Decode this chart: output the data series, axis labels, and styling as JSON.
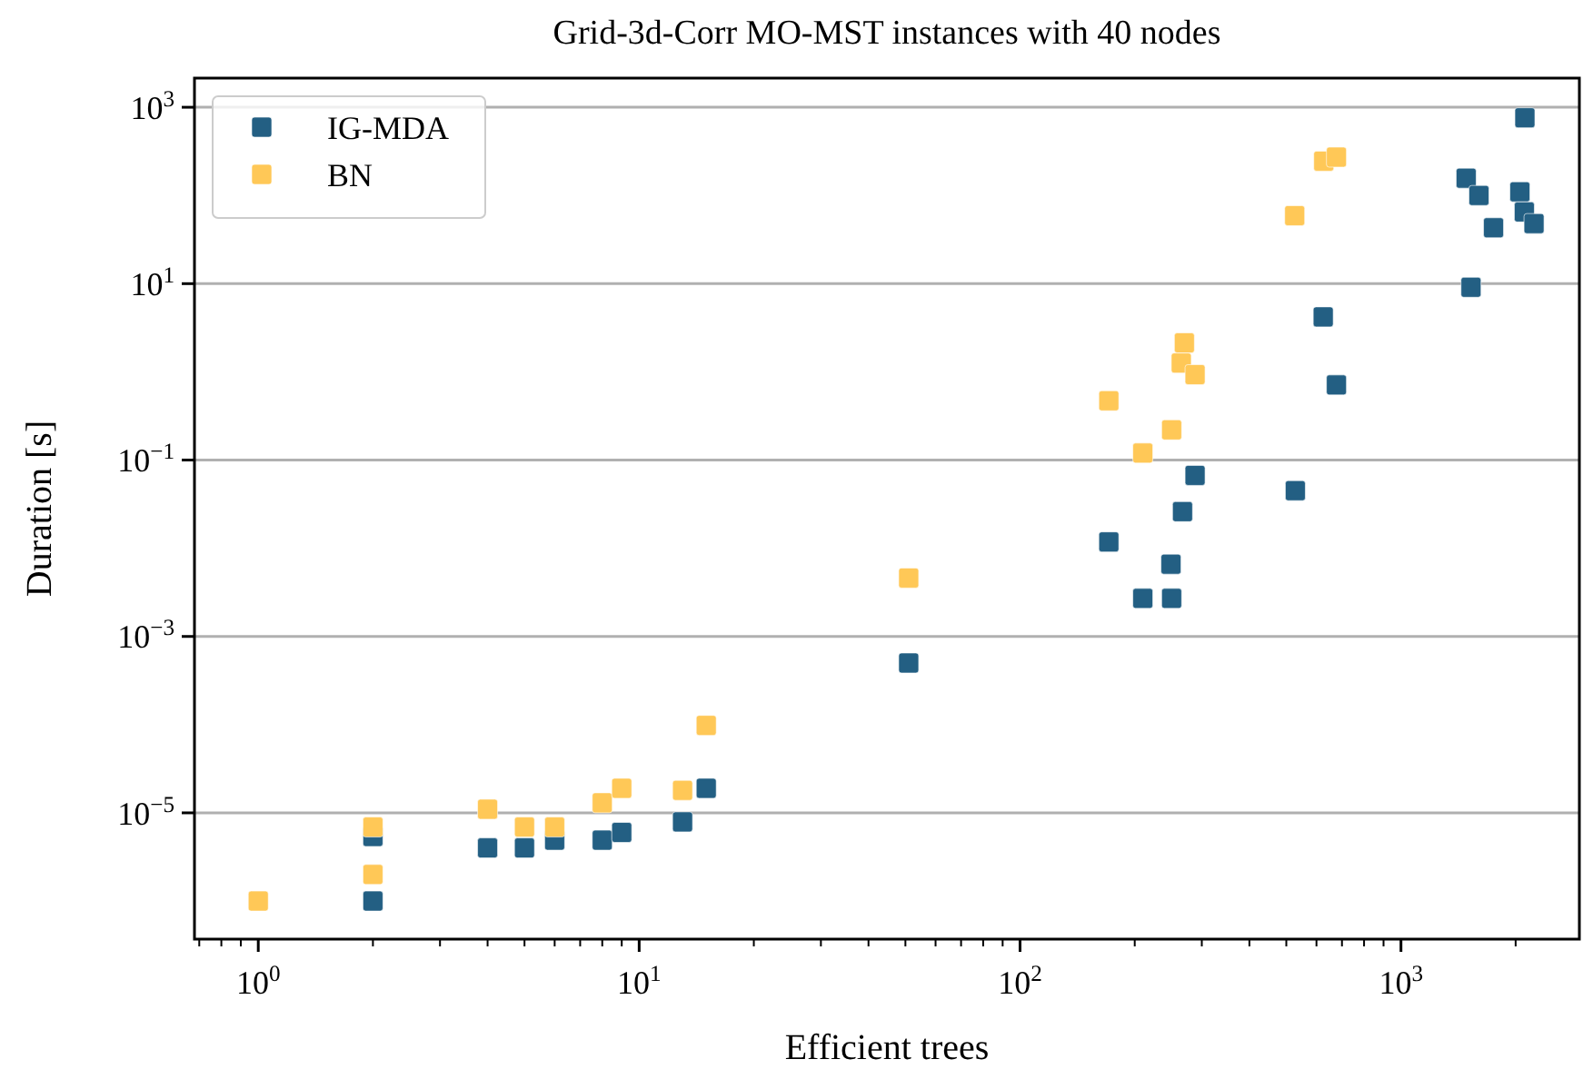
{
  "chart_data": {
    "type": "scatter",
    "title": "Grid-3d-Corr MO-MST instances with 40 nodes",
    "xlabel": "Efficient trees",
    "ylabel": "Duration [s]",
    "log": "xy",
    "grid": "y",
    "legend": "top left",
    "marker": "square",
    "xlim": [
      0.68,
      2940
    ],
    "ylim": [
      3.7e-07,
      2140
    ],
    "xticks": [
      {
        "value": 0.7,
        "label": null
      },
      {
        "value": 0.8,
        "label": null
      },
      {
        "value": 0.9,
        "label": null
      },
      {
        "value": 1,
        "label": "10$^{0}$"
      },
      {
        "value": 2,
        "label": null
      },
      {
        "value": 3,
        "label": null
      },
      {
        "value": 4,
        "label": null
      },
      {
        "value": 5,
        "label": null
      },
      {
        "value": 6,
        "label": null
      },
      {
        "value": 7,
        "label": null
      },
      {
        "value": 8,
        "label": null
      },
      {
        "value": 9,
        "label": null
      },
      {
        "value": 10,
        "label": "10$^{1}$"
      },
      {
        "value": 20,
        "label": null
      },
      {
        "value": 30,
        "label": null
      },
      {
        "value": 40,
        "label": null
      },
      {
        "value": 50,
        "label": null
      },
      {
        "value": 60,
        "label": null
      },
      {
        "value": 70,
        "label": null
      },
      {
        "value": 80,
        "label": null
      },
      {
        "value": 90,
        "label": null
      },
      {
        "value": 100,
        "label": "10$^{2}$"
      },
      {
        "value": 200,
        "label": null
      },
      {
        "value": 300,
        "label": null
      },
      {
        "value": 400,
        "label": null
      },
      {
        "value": 500,
        "label": null
      },
      {
        "value": 600,
        "label": null
      },
      {
        "value": 700,
        "label": null
      },
      {
        "value": 800,
        "label": null
      },
      {
        "value": 900,
        "label": null
      },
      {
        "value": 1000,
        "label": "10$^{3}$"
      },
      {
        "value": 2000,
        "label": null
      }
    ],
    "yticks": [
      {
        "value": 1e-05,
        "label": "10$^{−5}$"
      },
      {
        "value": 0.001,
        "label": "10$^{−3}$"
      },
      {
        "value": 0.1,
        "label": "10$^{−1}$"
      },
      {
        "value": 10,
        "label": "10$^{1}$"
      },
      {
        "value": 1000,
        "label": "10$^{3}$"
      }
    ],
    "series": [
      {
        "name": "IG-MDA",
        "color": "#235f83",
        "x": [
          2,
          2,
          4,
          5,
          6,
          8,
          9,
          13,
          15,
          51,
          171,
          210,
          249,
          250,
          267,
          288,
          528,
          625,
          677,
          1483,
          1527,
          1602,
          1750,
          2052,
          2108,
          2115,
          2235
        ],
        "values": [
          1e-06,
          5.4e-06,
          4e-06,
          4e-06,
          4.9e-06,
          4.9e-06,
          6e-06,
          7.9e-06,
          1.9e-05,
          0.0005,
          0.0118,
          0.0027,
          0.0066,
          0.0027,
          0.026,
          0.067,
          0.045,
          4.2,
          0.71,
          157,
          9.1,
          100,
          43,
          110,
          65,
          760,
          48
        ]
      },
      {
        "name": "BN",
        "color": "#ffc857",
        "x": [
          1,
          2,
          2,
          4,
          5,
          6,
          8,
          9,
          13,
          15,
          51,
          171,
          210,
          250,
          265,
          270,
          288,
          526,
          627,
          677
        ],
        "values": [
          1e-06,
          6.9e-06,
          2e-06,
          1.1e-05,
          6.9e-06,
          6.9e-06,
          1.3e-05,
          1.9e-05,
          1.8e-05,
          9.8e-05,
          0.0046,
          0.47,
          0.12,
          0.22,
          1.26,
          2.13,
          0.93,
          59,
          245,
          272
        ]
      }
    ]
  }
}
